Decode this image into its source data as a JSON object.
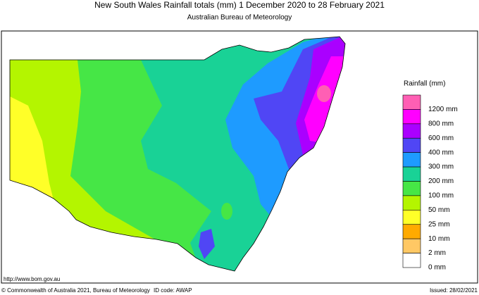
{
  "header": {
    "title": "New South Wales Rainfall totals (mm)    1 December 2020 to 28 February 2021",
    "subtitle": "Australian Bureau of Meteorology"
  },
  "legend": {
    "title": "Rainfall (mm)",
    "items": [
      {
        "label": "1200 mm",
        "color": "#ff5fb4"
      },
      {
        "label": "800 mm",
        "color": "#ff00ff"
      },
      {
        "label": "600 mm",
        "color": "#aa00ff"
      },
      {
        "label": "400 mm",
        "color": "#5046f5"
      },
      {
        "label": "300 mm",
        "color": "#1e9bff"
      },
      {
        "label": "200 mm",
        "color": "#19d296"
      },
      {
        "label": "100 mm",
        "color": "#46e646"
      },
      {
        "label": "50 mm",
        "color": "#b4f500"
      },
      {
        "label": "25 mm",
        "color": "#ffff28"
      },
      {
        "label": "10 mm",
        "color": "#ffaa00"
      },
      {
        "label": "2 mm",
        "color": "#ffc864"
      },
      {
        "label": "0 mm",
        "color": "#ffffff"
      }
    ]
  },
  "footer": {
    "url": "http://www.bom.gov.au",
    "copyright": "© Commonwealth of Australia 2021, Bureau of Meteorology",
    "id_code": "ID code: AWAP",
    "issued": "Issued: 28/02/2021"
  }
}
